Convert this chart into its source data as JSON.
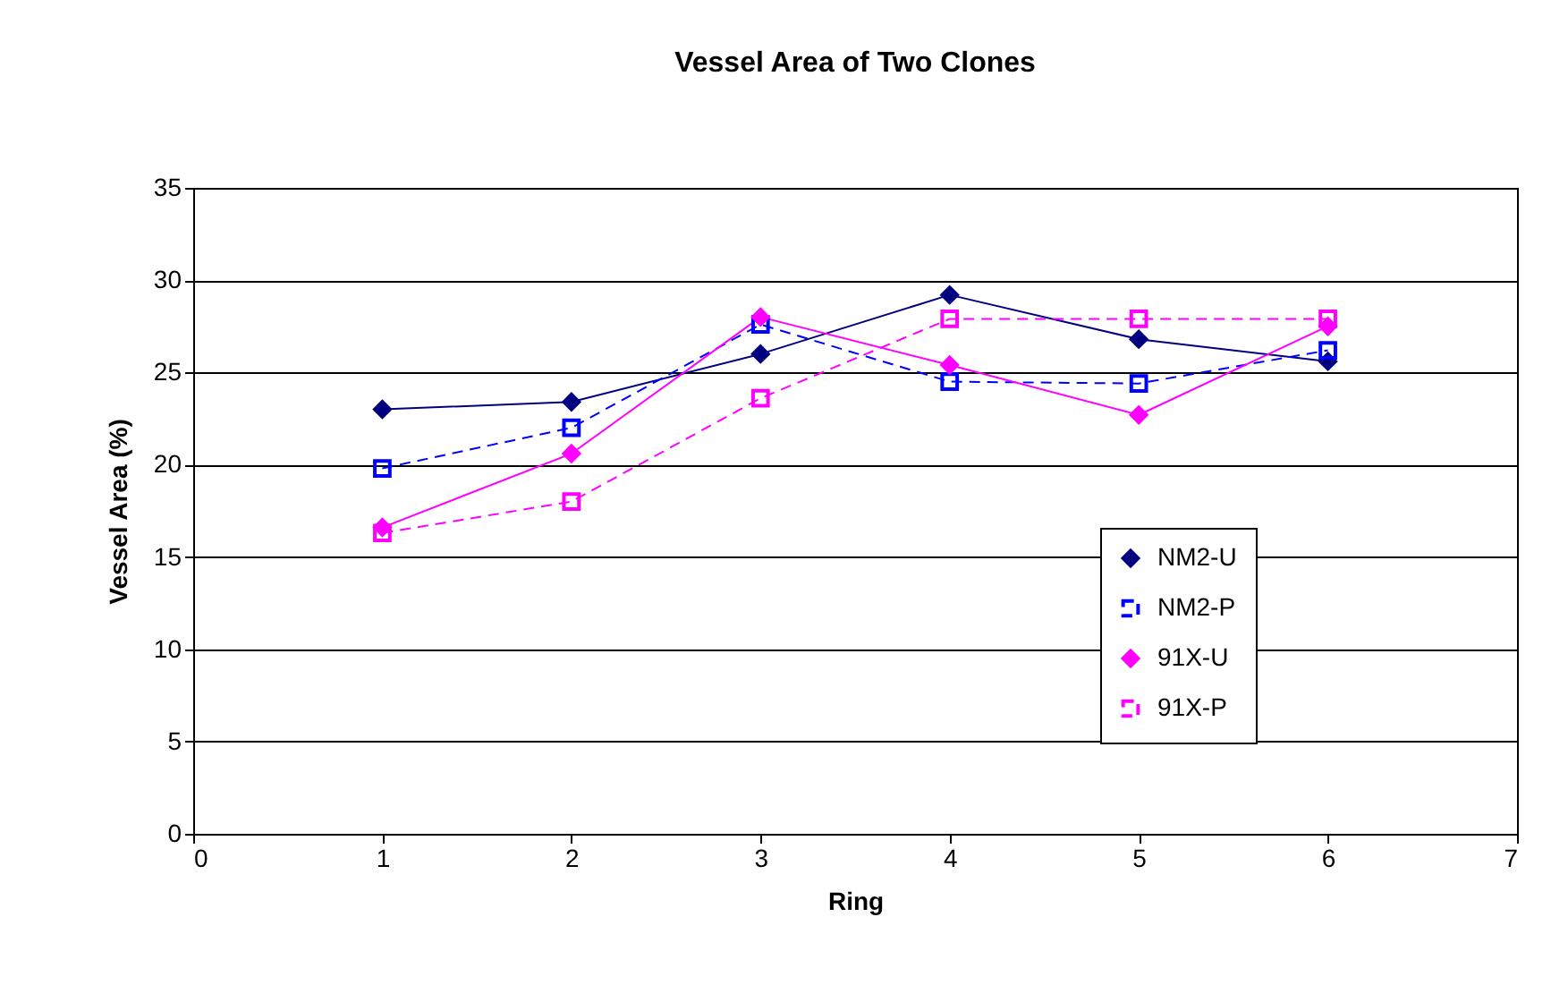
{
  "chart_data": {
    "type": "line",
    "title": "Vessel Area of Two Clones",
    "xlabel": "Ring",
    "ylabel": "Vessel Area (%)",
    "x": [
      1,
      2,
      3,
      4,
      5,
      6
    ],
    "series": [
      {
        "name": "NM2-U",
        "color": "#000080",
        "marker": "diamond",
        "line_style": "solid",
        "values": [
          23.0,
          23.4,
          26.0,
          29.2,
          26.8,
          25.6
        ]
      },
      {
        "name": "NM2-P",
        "color": "#0000ff",
        "marker": "square",
        "line_style": "dashed",
        "values": [
          19.8,
          22.0,
          27.6,
          24.5,
          24.4,
          26.2
        ]
      },
      {
        "name": "91X-U",
        "color": "#ff00ff",
        "marker": "diamond",
        "line_style": "solid",
        "values": [
          16.6,
          20.6,
          28.0,
          25.4,
          22.7,
          27.5
        ]
      },
      {
        "name": "91X-P",
        "color": "#ff00ff",
        "marker": "square",
        "line_style": "dashed",
        "values": [
          16.3,
          18.0,
          23.6,
          27.9,
          27.9,
          27.9
        ]
      }
    ],
    "xlim": [
      0,
      7
    ],
    "xticks": [
      0,
      1,
      2,
      3,
      4,
      5,
      6,
      7
    ],
    "ylim": [
      0,
      35
    ],
    "yticks": [
      0,
      5,
      10,
      15,
      20,
      25,
      30,
      35
    ],
    "grid": "y",
    "legend": "right"
  }
}
